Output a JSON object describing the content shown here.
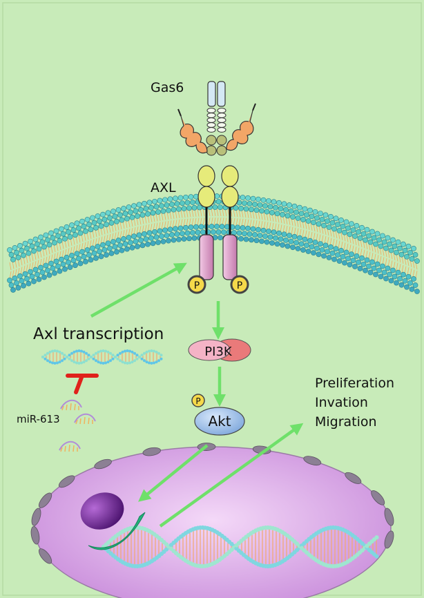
{
  "labels": {
    "gas6": "Gas6",
    "axl": "AXL",
    "p_left": "P",
    "p_right": "P",
    "pi3k": "PI3K",
    "p_akt": "P",
    "akt": "Akt",
    "axl_transcription": "Axl transcription",
    "mir": "miR-613",
    "outcome_1": "Preliferation",
    "outcome_2": "Invation",
    "outcome_3": "Migration"
  },
  "colors": {
    "background": "#c8ebb9",
    "arrow": "#6fe06a",
    "inhibit": "#e0211b",
    "membrane_head": "#58c9c3",
    "membrane_tail": "#f1a85c",
    "receptor": "#e6a9d1",
    "kinase_p": "#f5d94a",
    "pi3k_left": "#f4b3c6",
    "pi3k_right": "#ea7a7a",
    "akt": "#a9c8ee",
    "nucleus": "#d9a7e8",
    "nucleolus": "#7a2fa0",
    "crescent": "#23b27c",
    "pore": "#8c8094"
  },
  "icons": {
    "membrane": "lipid-bilayer-icon",
    "receptor": "axl-receptor-icon",
    "nucleus": "nucleus-icon",
    "dna": "dna-helix-icon",
    "mirna": "mirna-hairpin-icon"
  }
}
